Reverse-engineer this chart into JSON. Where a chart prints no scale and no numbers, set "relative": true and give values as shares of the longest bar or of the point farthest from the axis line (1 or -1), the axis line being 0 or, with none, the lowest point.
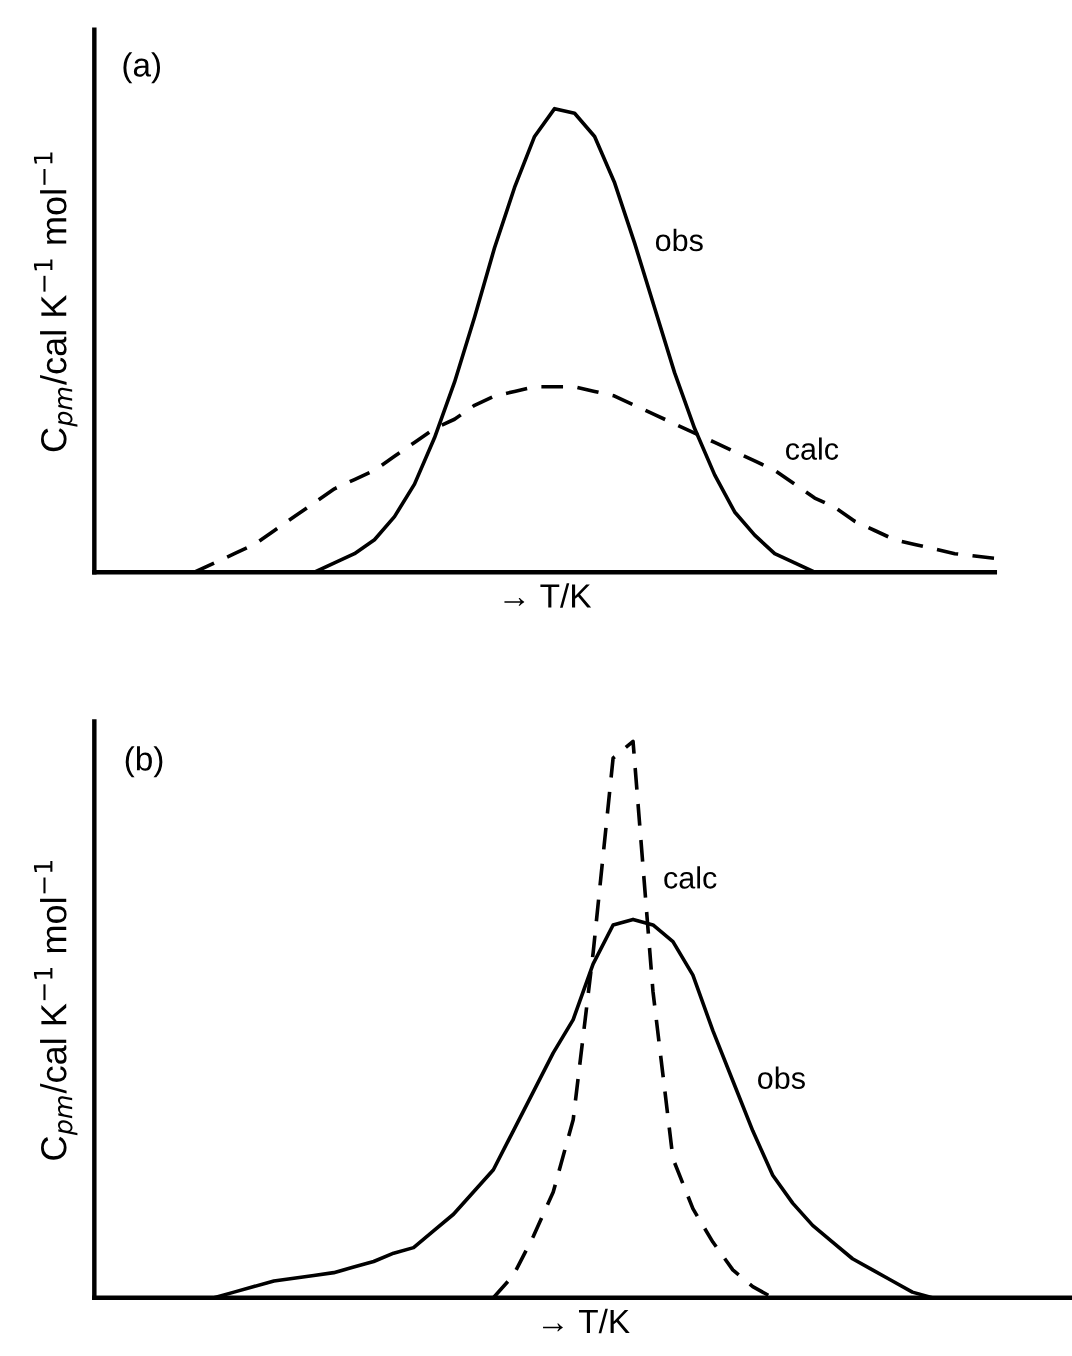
{
  "chart_data": [
    {
      "type": "line",
      "title": "(a)",
      "xlabel": "→ T/K",
      "ylabel": "C$_{pm}$/cal K$^{−1}$ mol$^{−1}$",
      "relative": true,
      "tick_labels": false,
      "categories": [
        null,
        null,
        null,
        null,
        null,
        null,
        null,
        null,
        null,
        null,
        null,
        null,
        null,
        null,
        null,
        null,
        null,
        null,
        null,
        null,
        null,
        null,
        null,
        null,
        null,
        null,
        null,
        null,
        null,
        null,
        null,
        null,
        null,
        null,
        null,
        null,
        null,
        null,
        null,
        null,
        null,
        null,
        null,
        null,
        null,
        null
      ],
      "series": [
        {
          "name": "obs",
          "color": "#000000",
          "line_style": "solid",
          "values": [
            null,
            null,
            null,
            null,
            null,
            null,
            null,
            null,
            null,
            null,
            0,
            0,
            0.02,
            0.04,
            0.07,
            0.12,
            0.19,
            0.29,
            0.41,
            0.55,
            0.7,
            0.83,
            0.94,
            1,
            0.99,
            0.94,
            0.84,
            0.71,
            0.57,
            0.43,
            0.31,
            0.21,
            0.13,
            0.08,
            0.04,
            0.02,
            0,
            null,
            null,
            null,
            null,
            null,
            null,
            null,
            null,
            null
          ]
        },
        {
          "name": "calc",
          "color": "#000000",
          "line_style": "dashed",
          "values": [
            null,
            null,
            null,
            null,
            null,
            0,
            0.02,
            0.04,
            0.06,
            0.09,
            0.12,
            0.15,
            0.18,
            0.2,
            0.22,
            0.25,
            0.28,
            0.31,
            0.33,
            0.36,
            0.38,
            0.39,
            0.4,
            0.4,
            0.4,
            0.39,
            0.38,
            0.36,
            0.34,
            0.32,
            0.3,
            0.28,
            0.26,
            0.24,
            0.22,
            0.19,
            0.16,
            0.14,
            0.11,
            0.09,
            0.07,
            0.06,
            0.05,
            0.04,
            0.035,
            0.03
          ]
        }
      ]
    },
    {
      "type": "line",
      "title": "(b)",
      "xlabel": "→ T/K",
      "ylabel": "C$_{pm}$/cal K$^{−1}$ mol$^{−1}$",
      "relative": true,
      "tick_labels": false,
      "categories": [
        null,
        null,
        null,
        null,
        null,
        null,
        null,
        null,
        null,
        null,
        null,
        null,
        null,
        null,
        null,
        null,
        null,
        null,
        null,
        null,
        null,
        null,
        null,
        null,
        null,
        null,
        null,
        null,
        null,
        null,
        null,
        null,
        null,
        null,
        null,
        null,
        null,
        null,
        null,
        null,
        null,
        null,
        null,
        null,
        null,
        null,
        null,
        null,
        null,
        null
      ],
      "series": [
        {
          "name": "calc",
          "color": "#000000",
          "line_style": "dashed",
          "values": [
            null,
            null,
            null,
            null,
            null,
            null,
            null,
            null,
            null,
            null,
            null,
            null,
            null,
            null,
            null,
            null,
            null,
            null,
            null,
            null,
            0,
            0.04,
            0.11,
            0.19,
            0.32,
            0.62,
            0.97,
            1,
            0.55,
            0.25,
            0.16,
            0.1,
            0.05,
            0.02,
            0,
            null,
            null,
            null,
            null,
            null,
            null,
            null,
            null,
            null,
            null,
            null,
            null,
            null,
            null,
            null
          ]
        },
        {
          "name": "obs",
          "color": "#000000",
          "line_style": "solid",
          "values": [
            null,
            null,
            null,
            null,
            null,
            null,
            0,
            0.01,
            0.02,
            0.03,
            0.035,
            0.04,
            0.045,
            0.055,
            0.065,
            0.08,
            0.09,
            0.12,
            0.15,
            0.19,
            0.23,
            0.3,
            0.37,
            0.44,
            0.5,
            0.6,
            0.67,
            0.68,
            0.67,
            0.64,
            0.58,
            0.48,
            0.39,
            0.3,
            0.22,
            0.17,
            0.13,
            0.1,
            0.07,
            0.05,
            0.03,
            0.01,
            0,
            null,
            null,
            null,
            null,
            null,
            null,
            null
          ]
        }
      ]
    }
  ]
}
